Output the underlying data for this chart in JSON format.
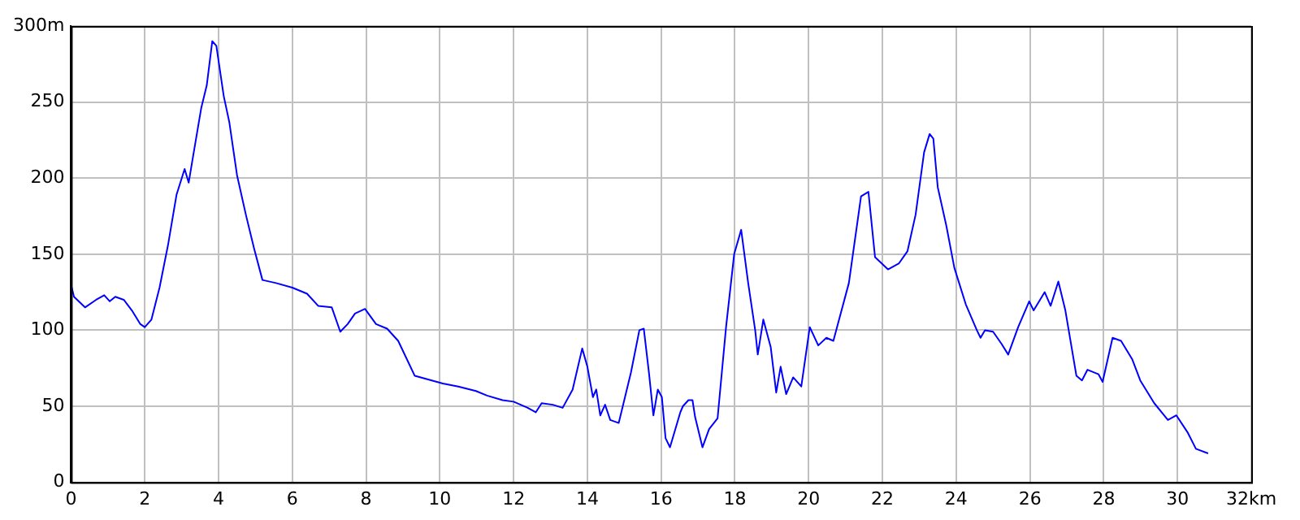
{
  "chart_data": {
    "type": "line",
    "x": [
      0,
      0.08,
      0.38,
      0.68,
      0.9,
      1.05,
      1.2,
      1.43,
      1.65,
      1.88,
      2.0,
      2.18,
      2.4,
      2.63,
      2.86,
      3.08,
      3.19,
      3.3,
      3.53,
      3.68,
      3.83,
      3.94,
      4.14,
      4.29,
      4.5,
      4.74,
      4.96,
      5.19,
      5.56,
      6.0,
      6.4,
      6.7,
      7.07,
      7.3,
      7.5,
      7.7,
      7.97,
      8.27,
      8.57,
      8.87,
      9.32,
      9.62,
      10.08,
      10.5,
      10.98,
      11.28,
      11.7,
      12.0,
      12.38,
      12.6,
      12.76,
      13.06,
      13.33,
      13.6,
      13.86,
      14.0,
      14.15,
      14.24,
      14.35,
      14.48,
      14.62,
      14.85,
      15.18,
      15.41,
      15.53,
      15.67,
      15.79,
      15.91,
      16.02,
      16.12,
      16.24,
      16.52,
      16.59,
      16.74,
      16.85,
      16.92,
      17.12,
      17.3,
      17.53,
      17.76,
      17.98,
      18.17,
      18.36,
      18.55,
      18.62,
      18.77,
      18.97,
      19.12,
      19.24,
      19.39,
      19.58,
      19.8,
      20.03,
      20.26,
      20.48,
      20.67,
      21.09,
      21.42,
      21.62,
      21.8,
      22.15,
      22.45,
      22.68,
      22.9,
      23.13,
      23.28,
      23.38,
      23.5,
      23.73,
      23.95,
      24.26,
      24.56,
      24.66,
      24.78,
      25.0,
      25.23,
      25.41,
      25.68,
      25.98,
      26.1,
      26.4,
      26.56,
      26.77,
      26.96,
      27.26,
      27.41,
      27.56,
      27.86,
      27.97,
      28.24,
      28.47,
      28.77,
      28.99,
      29.37,
      29.74,
      29.97,
      30.27,
      30.5,
      30.83
    ],
    "series": [
      {
        "color": "#0000ff",
        "values": [
          130,
          122,
          115,
          120,
          123,
          119,
          122,
          120,
          113,
          104,
          102,
          107,
          128,
          156,
          189,
          206,
          197,
          213,
          246,
          261,
          290,
          287,
          254,
          237,
          202,
          176,
          154,
          133,
          131,
          128,
          124,
          116,
          115,
          99,
          104,
          111,
          114,
          104,
          101,
          93,
          70,
          68,
          65,
          63,
          60,
          57,
          54,
          53,
          49,
          46,
          52,
          51,
          49,
          61,
          88,
          76,
          56,
          61,
          44,
          51,
          41,
          39,
          72,
          100,
          101,
          72,
          44,
          61,
          56,
          29,
          23,
          46,
          50,
          54,
          54,
          43,
          23,
          35,
          42,
          102,
          150,
          166,
          131,
          100,
          84,
          107,
          89,
          59,
          76,
          58,
          69,
          63,
          102,
          90,
          95,
          93,
          131,
          188,
          191,
          148,
          140,
          144,
          152,
          176,
          217,
          229,
          226,
          194,
          169,
          141,
          117,
          100,
          95,
          100,
          99,
          91,
          84,
          102,
          119,
          113,
          125,
          116,
          132,
          113,
          70,
          67,
          74,
          71,
          66,
          95,
          93,
          81,
          67,
          52,
          41,
          44,
          33,
          22,
          19
        ]
      }
    ],
    "xlim": [
      0,
      32
    ],
    "xticks": [
      0,
      2,
      4,
      6,
      8,
      10,
      12,
      14,
      16,
      18,
      20,
      22,
      24,
      26,
      28,
      30,
      {
        "value": 32,
        "label": "32km"
      }
    ],
    "ylim": [
      0,
      300
    ],
    "yticks": [
      0,
      50,
      100,
      150,
      200,
      250,
      {
        "value": 300,
        "label": "300m"
      }
    ],
    "grid": true,
    "line_style": "solid",
    "marker": "none"
  }
}
